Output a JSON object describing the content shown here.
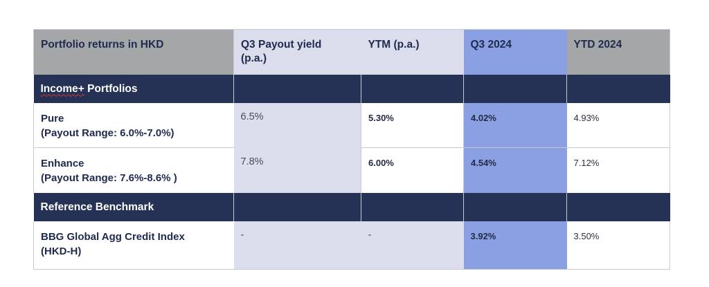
{
  "header": {
    "col1": "Portfolio returns in HKD",
    "col2_line1": "Q3 Payout yield",
    "col2_line2": "(p.a.)",
    "col3": "YTM (p.a.)",
    "col4": "Q3 2024",
    "col5": "YTD 2024"
  },
  "sections": {
    "income_plus_word": "Income+",
    "income_plus_rest": " Portfolios",
    "reference": "Reference Benchmark"
  },
  "rows": [
    {
      "name": "Pure",
      "subtitle": "(Payout Range: 6.0%-7.0%)",
      "payout": "6.5%",
      "ytm": "5.30%",
      "q3": "4.02%",
      "ytd": "4.93%"
    },
    {
      "name": "Enhance",
      "subtitle": "(Payout Range: 7.6%-8.6%  )",
      "payout": "7.8%",
      "ytm": "6.00%",
      "q3": "4.54%",
      "ytd": "7.12%"
    },
    {
      "name": "BBG Global Agg Credit Index",
      "subtitle": "(HKD-H)",
      "payout": "-",
      "ytm": "-",
      "q3": "3.92%",
      "ytd": "3.50%"
    }
  ],
  "colors": {
    "navy": "#253256",
    "highlight_blue": "#8aa0e2",
    "lavender": "#dcdded",
    "grey": "#a5a6a8"
  }
}
